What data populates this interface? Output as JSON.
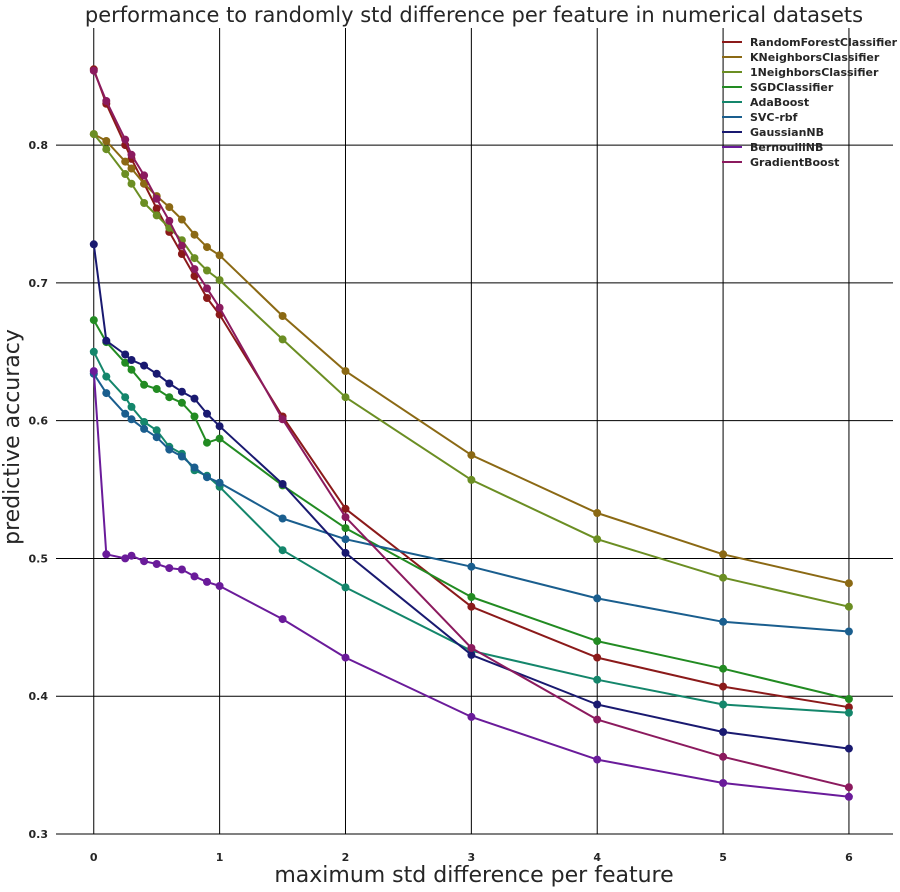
{
  "chart_data": {
    "type": "line",
    "title": "performance to randomly std difference per feature in numerical datasets",
    "xlabel": "maximum std difference per feature",
    "ylabel": "predictive accuracy",
    "xlim": [
      -0.3,
      6.35
    ],
    "ylim": [
      0.3,
      0.885
    ],
    "xticks": [
      0,
      1,
      2,
      3,
      4,
      5,
      6
    ],
    "xtick_labels": [
      "0",
      "1",
      "2",
      "3",
      "4",
      "5",
      "6"
    ],
    "yticks": [
      0.3,
      0.4,
      0.5,
      0.6,
      0.7,
      0.8
    ],
    "ytick_labels": [
      "0.3",
      "0.4",
      "0.5",
      "0.6",
      "0.7",
      "0.8"
    ],
    "grid": true,
    "legend_position": "top-right",
    "x": [
      0,
      0.1,
      0.25,
      0.3,
      0.4,
      0.5,
      0.6,
      0.7,
      0.8,
      0.9,
      1,
      1.5,
      2,
      3,
      4,
      5,
      6
    ],
    "series": [
      {
        "name": "RandomForestClassifier",
        "color": "#8b1a1a",
        "values": [
          0.855,
          0.83,
          0.8,
          0.79,
          0.772,
          0.754,
          0.737,
          0.721,
          0.705,
          0.689,
          0.677,
          0.603,
          0.536,
          0.465,
          0.428,
          0.407,
          0.392
        ]
      },
      {
        "name": "KNeighborsClassifier",
        "color": "#8b6914",
        "values": [
          0.808,
          0.803,
          0.788,
          0.783,
          0.772,
          0.763,
          0.755,
          0.746,
          0.735,
          0.726,
          0.72,
          0.676,
          0.636,
          0.575,
          0.533,
          0.503,
          0.482
        ]
      },
      {
        "name": "1NeighborsClassifier",
        "color": "#6b8e23",
        "values": [
          0.808,
          0.797,
          0.779,
          0.772,
          0.758,
          0.749,
          0.74,
          0.731,
          0.718,
          0.709,
          0.702,
          0.659,
          0.617,
          0.557,
          0.514,
          0.486,
          0.465
        ]
      },
      {
        "name": "SGDClassifier",
        "color": "#228b22",
        "values": [
          0.673,
          0.657,
          0.642,
          0.637,
          0.626,
          0.623,
          0.617,
          0.613,
          0.603,
          0.584,
          0.587,
          0.553,
          0.522,
          0.472,
          0.44,
          0.42,
          0.398
        ]
      },
      {
        "name": "AdaBoost",
        "color": "#14866b",
        "values": [
          0.65,
          0.632,
          0.617,
          0.61,
          0.599,
          0.593,
          0.581,
          0.576,
          0.564,
          0.56,
          0.552,
          0.506,
          0.479,
          0.433,
          0.412,
          0.394,
          0.388
        ]
      },
      {
        "name": "SVC-rbf",
        "color": "#1a5e8e",
        "values": [
          0.634,
          0.62,
          0.605,
          0.601,
          0.594,
          0.588,
          0.579,
          0.574,
          0.566,
          0.559,
          0.555,
          0.529,
          0.514,
          0.494,
          0.471,
          0.454,
          0.447
        ]
      },
      {
        "name": "GaussianNB",
        "color": "#191970",
        "values": [
          0.728,
          0.658,
          0.648,
          0.644,
          0.64,
          0.634,
          0.627,
          0.621,
          0.616,
          0.605,
          0.596,
          0.554,
          0.504,
          0.43,
          0.394,
          0.374,
          0.362
        ]
      },
      {
        "name": "BernoulliNB",
        "color": "#6a1b9a",
        "values": [
          0.636,
          0.503,
          0.5,
          0.502,
          0.498,
          0.496,
          0.493,
          0.492,
          0.487,
          0.483,
          0.48,
          0.456,
          0.428,
          0.385,
          0.354,
          0.337,
          0.327
        ]
      },
      {
        "name": "GradientBoost",
        "color": "#8b1a5e",
        "values": [
          0.854,
          0.832,
          0.804,
          0.793,
          0.778,
          0.761,
          0.745,
          0.727,
          0.71,
          0.696,
          0.682,
          0.601,
          0.53,
          0.435,
          0.383,
          0.356,
          0.334
        ]
      }
    ]
  }
}
